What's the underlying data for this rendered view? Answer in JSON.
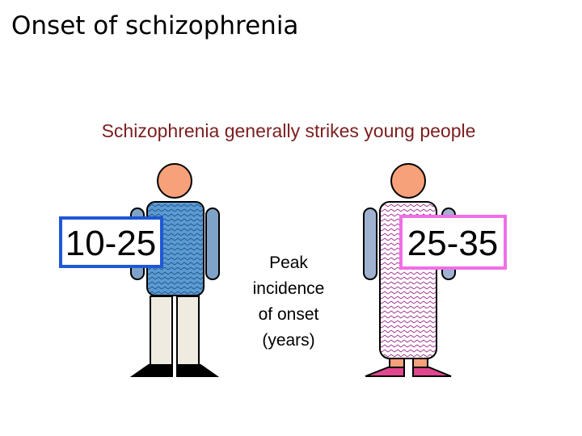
{
  "title": "Onset of schizophrenia",
  "subtitle": "Schizophrenia generally strikes young people",
  "male": {
    "label": "10-25"
  },
  "female": {
    "label": "25-35"
  },
  "center_text": {
    "lines": [
      "Peak",
      "incidence",
      "of onset",
      "(years)"
    ]
  }
}
